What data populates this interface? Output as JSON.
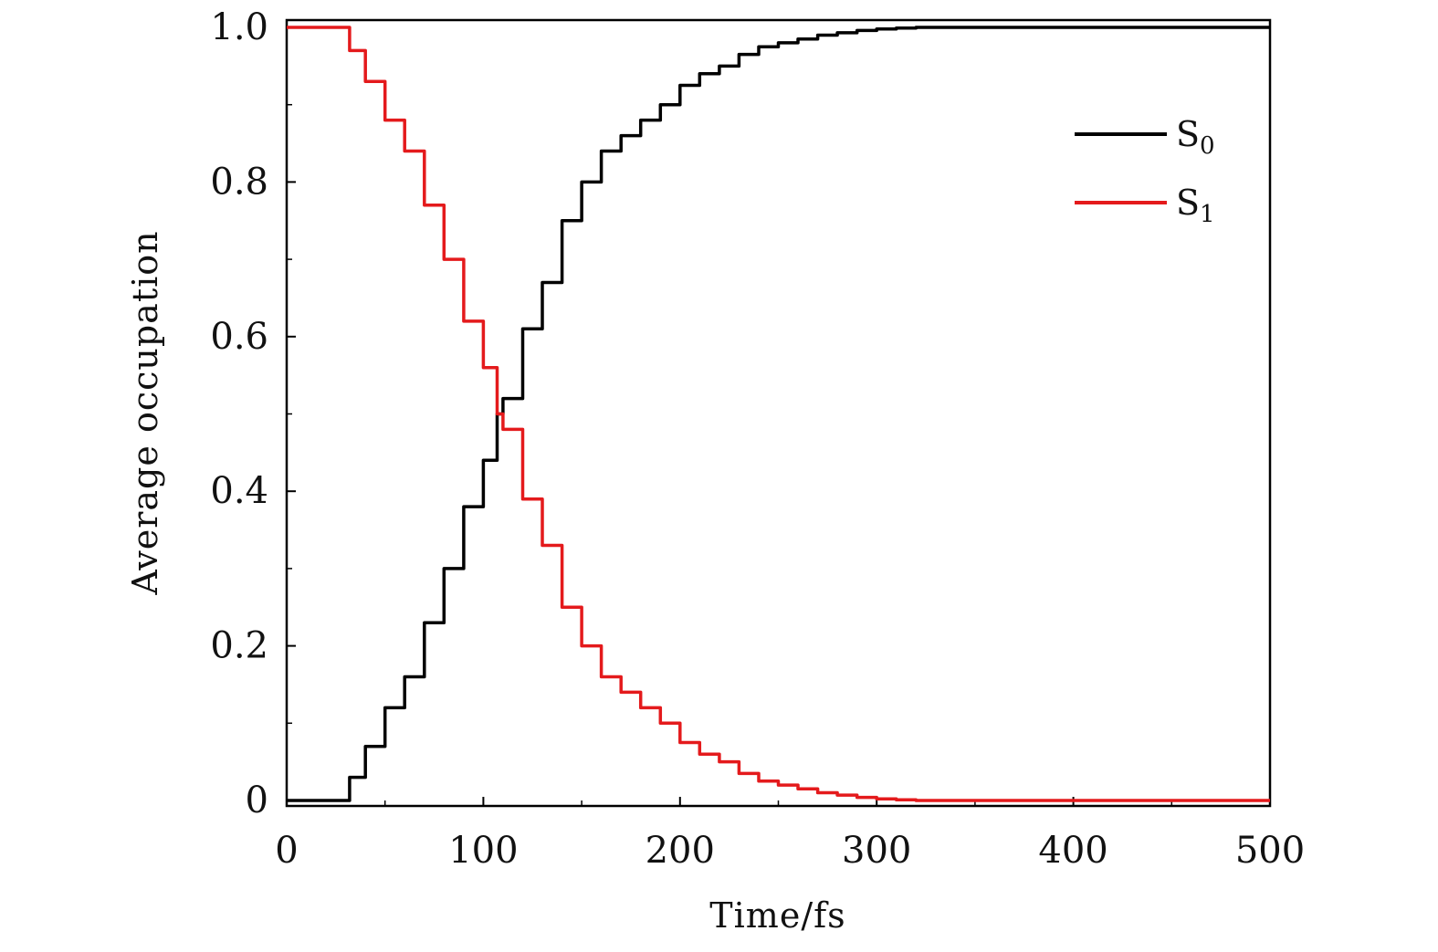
{
  "chart_data": {
    "type": "line",
    "title": "",
    "xlabel": "Time/fs",
    "ylabel": "Average occupation",
    "xlim": [
      0,
      500
    ],
    "ylim": [
      0,
      1.0
    ],
    "x_ticks": [
      0,
      100,
      200,
      300,
      400,
      500
    ],
    "x_tick_labels": [
      "0",
      "100",
      "200",
      "300",
      "400",
      "500"
    ],
    "y_ticks": [
      0,
      0.2,
      0.4,
      0.6,
      0.8,
      1.0
    ],
    "y_tick_labels": [
      "0",
      "0.2",
      "0.4",
      "0.6",
      "0.8",
      "1.0"
    ],
    "legend_position": "top-right",
    "grid": false,
    "x": [
      0,
      28,
      32,
      40,
      50,
      60,
      70,
      80,
      90,
      100,
      107,
      110,
      120,
      130,
      140,
      150,
      160,
      170,
      180,
      190,
      200,
      210,
      220,
      230,
      240,
      250,
      260,
      270,
      280,
      290,
      300,
      310,
      320,
      350,
      400,
      450,
      500
    ],
    "series": [
      {
        "name": "S0",
        "label_base": "S",
        "label_sub": "0",
        "color": "#000000",
        "values": [
          0,
          0,
          0.03,
          0.07,
          0.12,
          0.16,
          0.23,
          0.3,
          0.38,
          0.44,
          0.5,
          0.52,
          0.61,
          0.67,
          0.75,
          0.8,
          0.84,
          0.86,
          0.88,
          0.9,
          0.925,
          0.94,
          0.95,
          0.965,
          0.975,
          0.98,
          0.985,
          0.99,
          0.993,
          0.996,
          0.998,
          0.999,
          1.0,
          1.0,
          1.0,
          1.0,
          1.0
        ]
      },
      {
        "name": "S1",
        "label_base": "S",
        "label_sub": "1",
        "color": "#e41a1c",
        "values": [
          1.0,
          1.0,
          0.97,
          0.93,
          0.88,
          0.84,
          0.77,
          0.7,
          0.62,
          0.56,
          0.5,
          0.48,
          0.39,
          0.33,
          0.25,
          0.2,
          0.16,
          0.14,
          0.12,
          0.1,
          0.075,
          0.06,
          0.05,
          0.035,
          0.025,
          0.02,
          0.015,
          0.01,
          0.007,
          0.004,
          0.002,
          0.001,
          0,
          0,
          0,
          0,
          0
        ]
      }
    ]
  }
}
